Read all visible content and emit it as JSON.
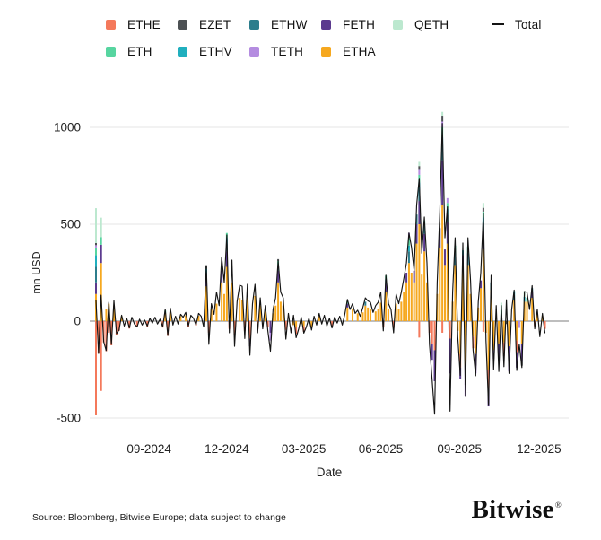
{
  "legend": {
    "row1": [
      {
        "label": "ETHE",
        "swatch": "bar"
      },
      {
        "label": "EZET",
        "swatch": "bar"
      },
      {
        "label": "ETHW",
        "swatch": "bar"
      },
      {
        "label": "FETH",
        "swatch": "bar"
      },
      {
        "label": "QETH",
        "swatch": "bar"
      },
      {
        "label": "Total",
        "swatch": "line"
      }
    ],
    "row2": [
      {
        "label": "ETH",
        "swatch": "bar"
      },
      {
        "label": "ETHV",
        "swatch": "bar"
      },
      {
        "label": "TETH",
        "swatch": "bar"
      },
      {
        "label": "ETHA",
        "swatch": "bar"
      }
    ]
  },
  "footer": {
    "source": "Source: Bloomberg, Bitwise Europe; data subject to change",
    "logo": "Bitwise",
    "logo_mark": "®"
  },
  "chart_data": {
    "type": "bar",
    "subtype": "stacked-daily-flows-with-total-line",
    "title": "",
    "xlabel": "Date",
    "ylabel": "mn USD",
    "x_start_date": "2024-07-01",
    "step_days": 3,
    "ylim": [
      -620,
      1120
    ],
    "grid": true,
    "legend_position": "top",
    "y_ticks": [
      {
        "label": "1000",
        "value": 1000
      },
      {
        "label": "500",
        "value": 500
      },
      {
        "label": "0",
        "value": 0
      },
      {
        "label": "-500",
        "value": -500
      }
    ],
    "x_ticks": [
      {
        "label": "09-2024",
        "day": 62
      },
      {
        "label": "12-2024",
        "day": 153
      },
      {
        "label": "03-2025",
        "day": 243
      },
      {
        "label": "06-2025",
        "day": 333
      },
      {
        "label": "09-2025",
        "day": 425
      },
      {
        "label": "12-2025",
        "day": 518
      }
    ],
    "colors": {
      "ETHE": "#F4795B",
      "EZET": "#4D5154",
      "ETHW": "#2C7D8C",
      "FETH": "#5B3A8E",
      "QETH": "#BCE8CF",
      "ETH": "#57D5A0",
      "ETHV": "#20AFBE",
      "TETH": "#B48CE0",
      "ETHA": "#F6A81F",
      "Total": "#141414"
    },
    "grid_color": "#e4e4e4",
    "zero_line_color": "#7d7d7d",
    "stack_order": [
      "ETHA",
      "ETHE",
      "FETH",
      "ETHW",
      "ETHV",
      "ETH",
      "TETH",
      "EZET",
      "QETH"
    ],
    "total_series_name": "Total",
    "total": [
      107,
      -167,
      134,
      -106,
      -152,
      97,
      -120,
      106,
      -65,
      -46,
      30,
      -25,
      15,
      -35,
      20,
      -15,
      -30,
      10,
      -20,
      5,
      -25,
      15,
      -10,
      20,
      -15,
      10,
      -30,
      60,
      -74,
      67,
      -20,
      25,
      -15,
      35,
      20,
      45,
      -25,
      30,
      15,
      -20,
      40,
      25,
      -30,
      287,
      -120,
      90,
      35,
      150,
      80,
      330,
      200,
      445,
      -60,
      315,
      -130,
      100,
      185,
      180,
      -90,
      190,
      -176,
      90,
      190,
      -60,
      120,
      -40,
      80,
      -50,
      -155,
      60,
      120,
      310,
      150,
      120,
      -93,
      40,
      -60,
      30,
      -85,
      -40,
      20,
      -62,
      -30,
      15,
      -46,
      25,
      -20,
      40,
      -15,
      30,
      -25,
      15,
      -35,
      20,
      -10,
      25,
      -20,
      35,
      112,
      60,
      90,
      40,
      56,
      25,
      70,
      120,
      104,
      97,
      45,
      80,
      97,
      150,
      -50,
      237,
      90,
      60,
      -60,
      140,
      90,
      150,
      220,
      300,
      455,
      380,
      260,
      600,
      737,
      350,
      537,
      300,
      -120,
      -300,
      -480,
      200,
      560,
      1020,
      430,
      590,
      -465,
      150,
      430,
      -80,
      -280,
      403,
      -389,
      430,
      208,
      -150,
      -282,
      100,
      250,
      555,
      -100,
      -435,
      236,
      -250,
      80,
      -260,
      80,
      -235,
      110,
      -270,
      60,
      160,
      -255,
      -120,
      -240,
      153,
      148,
      60,
      183,
      -40,
      60,
      -80,
      40,
      -60
    ],
    "series_sparse": {
      "ETHE": {
        "0": -486,
        "1": -167,
        "2": -360,
        "3": -110,
        "4": -155,
        "5": -60,
        "6": -125,
        "8": -70,
        "9": -50,
        "13": -38,
        "16": -32,
        "20": -28,
        "26": -33,
        "28": -76,
        "36": -28,
        "39": -22,
        "44": -60,
        "52": -40,
        "54": -70,
        "58": -50,
        "60": -90,
        "63": -40,
        "67": -30,
        "74": -45,
        "78": -35,
        "81": -30,
        "92": -25,
        "112": -30,
        "116": -35,
        "126": -85,
        "130": -60,
        "131": -120,
        "132": -150,
        "135": -60,
        "138": -90,
        "142": -70,
        "147": -60,
        "151": -55,
        "153": -100,
        "159": -70,
        "164": -60,
        "171": -25,
        "175": -40
      },
      "ETHA": {
        "0": 140,
        "2": 300,
        "4": 60,
        "5": 90,
        "7": 80,
        "10": 25,
        "27": 40,
        "29": 45,
        "33": 25,
        "35": 30,
        "40": 28,
        "43": 180,
        "45": 60,
        "47": 90,
        "49": 200,
        "50": 140,
        "51": 280,
        "53": 200,
        "56": 120,
        "57": 110,
        "59": 120,
        "62": 130,
        "64": 80,
        "66": 50,
        "69": 40,
        "70": 80,
        "71": 200,
        "72": 100,
        "73": 80,
        "77": -20,
        "78": -30,
        "80": -15,
        "81": -25,
        "84": -30,
        "87": 25,
        "98": 70,
        "100": 60,
        "102": 40,
        "104": 45,
        "105": 80,
        "106": 70,
        "107": 60,
        "109": 50,
        "110": 65,
        "111": 95,
        "113": 150,
        "114": 60,
        "117": 90,
        "118": 60,
        "119": 100,
        "120": 150,
        "121": 200,
        "122": 300,
        "123": 250,
        "124": 200,
        "125": 400,
        "126": 500,
        "127": 240,
        "128": 360,
        "129": 200,
        "133": 140,
        "134": 380,
        "135": 600,
        "136": 290,
        "137": 400,
        "139": 100,
        "140": 290,
        "141": -50,
        "142": -170,
        "143": 270,
        "144": -230,
        "145": 290,
        "146": 140,
        "147": -80,
        "148": -170,
        "149": 70,
        "150": 170,
        "151": 370,
        "152": -60,
        "153": -250,
        "154": 160,
        "155": -150,
        "157": -120,
        "159": -110,
        "161": -130,
        "163": 110,
        "164": -100,
        "166": -120,
        "167": 100,
        "168": 100,
        "170": 120,
        "172": 40,
        "174": 25
      },
      "FETH": {
        "0": 60,
        "2": 94,
        "43": 40,
        "49": 60,
        "51": 80,
        "60": -40,
        "68": -60,
        "71": 60,
        "98": 20,
        "113": 40,
        "121": 50,
        "124": 60,
        "125": 100,
        "126": 120,
        "128": 90,
        "131": -80,
        "132": -160,
        "134": 100,
        "135": 230,
        "136": 80,
        "137": 110,
        "138": -180,
        "142": -60,
        "143": 70,
        "144": -100,
        "148": -60,
        "150": 40,
        "151": 90,
        "153": -90,
        "157": -70,
        "161": -90,
        "164": -80,
        "166": -90,
        "170": 30
      },
      "ETHW": {
        "0": 80,
        "43": 30,
        "51": 40,
        "71": 30,
        "105": 20,
        "113": 25,
        "122": 60,
        "125": 50,
        "126": 60,
        "128": 40,
        "135": 80,
        "137": 40,
        "140": 60,
        "145": 60,
        "151": 45,
        "154": 40,
        "158": 30,
        "163": 25,
        "170": 20
      },
      "ETH": {
        "0": 40,
        "2": 40,
        "27": 15,
        "51": 25,
        "71": 20,
        "98": 12,
        "113": 20,
        "122": 40,
        "126": 40,
        "128": 30,
        "135": 50,
        "137": 30,
        "140": 40,
        "145": 35,
        "151": 30,
        "158": 25,
        "168": 20
      },
      "ETHV": {
        "0": 60,
        "43": 20,
        "51": 30,
        "122": 30,
        "126": 35,
        "135": 40,
        "137": 30,
        "143": 25,
        "151": 30,
        "163": 20,
        "167": 25
      },
      "QETH": {
        "0": 180,
        "2": 100,
        "126": 22,
        "135": 20,
        "151": 25,
        "158": 40,
        "167": 30
      },
      "TETH": {
        "0": 12,
        "68": -40,
        "122": 25,
        "126": 30,
        "135": 30,
        "137": 25,
        "144": -59,
        "148": -40,
        "155": -45,
        "161": -40,
        "165": -35
      },
      "EZET": {
        "0": 11,
        "43": 17,
        "71": 10,
        "126": 15,
        "135": 30,
        "151": 20,
        "160": -15,
        "166": -20
      }
    }
  }
}
